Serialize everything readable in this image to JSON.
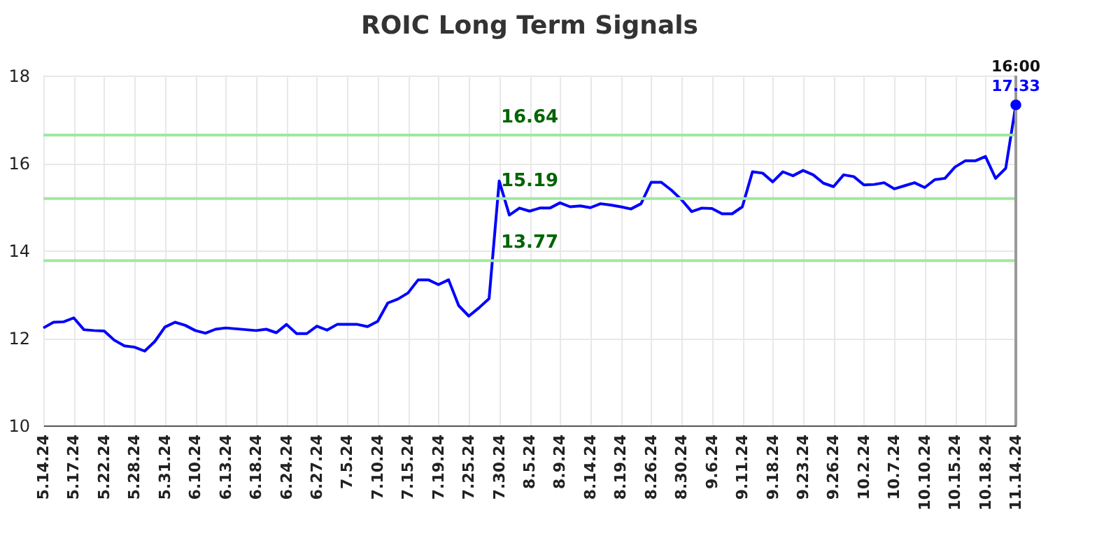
{
  "chart_data": {
    "type": "line",
    "title": "ROIC Long Term Signals",
    "categories": [
      "5.14.24",
      null,
      null,
      "5.17.24",
      null,
      null,
      "5.22.24",
      null,
      null,
      "5.28.24",
      null,
      null,
      "5.31.24",
      null,
      null,
      "6.10.24",
      null,
      null,
      "6.13.24",
      null,
      null,
      "6.18.24",
      null,
      null,
      "6.24.24",
      null,
      null,
      "6.27.24",
      null,
      null,
      "7.5.24",
      null,
      null,
      "7.10.24",
      null,
      null,
      "7.15.24",
      null,
      null,
      "7.19.24",
      null,
      null,
      "7.25.24",
      null,
      null,
      "7.30.24",
      null,
      null,
      "8.5.24",
      null,
      null,
      "8.9.24",
      null,
      null,
      "8.14.24",
      null,
      null,
      "8.19.24",
      null,
      null,
      "8.26.24",
      null,
      null,
      "8.30.24",
      null,
      null,
      "9.6.24",
      null,
      null,
      "9.11.24",
      null,
      null,
      "9.18.24",
      null,
      null,
      "9.23.24",
      null,
      null,
      "9.26.24",
      null,
      null,
      "10.2.24",
      null,
      null,
      "10.7.24",
      null,
      null,
      "10.10.24",
      null,
      null,
      "10.15.24",
      null,
      null,
      "10.18.24",
      null,
      null,
      "11.14.24"
    ],
    "series": [
      {
        "color": "#0000ff",
        "values": [
          12.23,
          12.36,
          12.37,
          12.46,
          12.19,
          12.17,
          12.16,
          11.95,
          11.82,
          11.79,
          11.7,
          11.92,
          12.25,
          12.36,
          12.29,
          12.17,
          12.11,
          12.2,
          12.23,
          12.21,
          12.19,
          12.17,
          12.2,
          12.12,
          12.31,
          12.1,
          12.1,
          12.27,
          12.18,
          12.31,
          12.31,
          12.31,
          12.26,
          12.38,
          12.8,
          12.89,
          13.03,
          13.33,
          13.33,
          13.22,
          13.33,
          12.74,
          12.5,
          12.69,
          12.9,
          15.59,
          14.81,
          14.97,
          14.9,
          14.97,
          14.97,
          15.09,
          15.0,
          15.02,
          14.98,
          15.07,
          15.04,
          15.0,
          14.95,
          15.07,
          15.56,
          15.56,
          15.38,
          15.16,
          14.89,
          14.97,
          14.96,
          14.84,
          14.84,
          15.0,
          15.8,
          15.77,
          15.57,
          15.8,
          15.71,
          15.83,
          15.73,
          15.54,
          15.46,
          15.73,
          15.69,
          15.5,
          15.51,
          15.55,
          15.41,
          15.48,
          15.55,
          15.44,
          15.62,
          15.65,
          15.91,
          16.05,
          16.05,
          16.15,
          15.65,
          15.88,
          17.33
        ]
      }
    ],
    "ylim": [
      10,
      18
    ],
    "yticks": [
      10,
      12,
      14,
      16,
      18
    ],
    "grid": true,
    "ref_lines": [
      {
        "axis": "y",
        "value": 16.64,
        "label": "16.64",
        "color": "#a0e8a0"
      },
      {
        "axis": "y",
        "value": 15.19,
        "label": "15.19",
        "color": "#a0e8a0"
      },
      {
        "axis": "y",
        "value": 13.77,
        "label": "13.77",
        "color": "#a0e8a0"
      },
      {
        "axis": "x",
        "value": "11.14.24",
        "color": "#999999"
      }
    ],
    "annotations": [
      "16:00",
      {
        "text": "17.33",
        "x": "11.14.24",
        "y": 17.33
      }
    ]
  }
}
